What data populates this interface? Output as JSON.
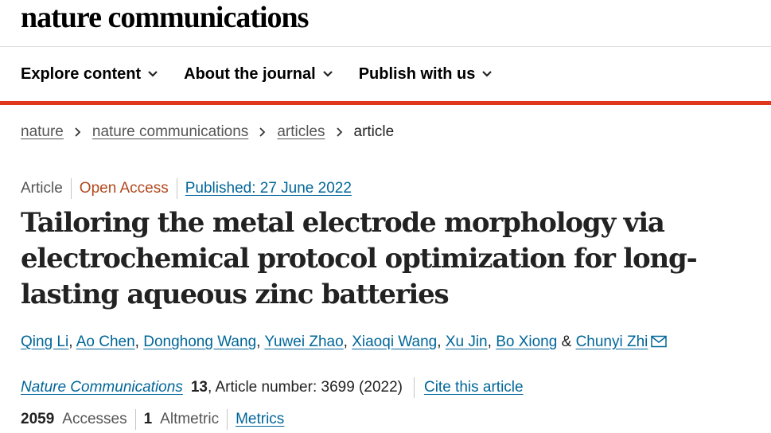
{
  "header": {
    "logo": "nature communications"
  },
  "nav": {
    "items": [
      {
        "label": "Explore content"
      },
      {
        "label": "About the journal"
      },
      {
        "label": "Publish with us"
      }
    ]
  },
  "breadcrumb": {
    "items": [
      "nature",
      "nature communications",
      "articles"
    ],
    "current": "article"
  },
  "meta": {
    "type": "Article",
    "access": "Open Access",
    "published": "Published: 27 June 2022"
  },
  "article": {
    "title": "Tailoring the metal electrode morphology via electrochemical protocol optimization for long-lasting aqueous zinc batteries",
    "authors": [
      "Qing Li",
      "Ao Chen",
      "Donghong Wang",
      "Yuwei Zhao",
      "Xiaoqi Wang",
      "Xu Jin",
      "Bo Xiong",
      "Chunyi Zhi"
    ],
    "author_sep": ",",
    "author_and": "&"
  },
  "journal": {
    "name": "Nature Communications",
    "volume": "13",
    "article_number": ", Article number: 3699 (2022)",
    "cite_label": "Cite this article"
  },
  "metrics": {
    "accesses_value": "2059",
    "accesses_label": "Accesses",
    "altmetric_value": "1",
    "altmetric_label": "Altmetric",
    "metrics_link": "Metrics"
  },
  "colors": {
    "accent_red": "#e0371c",
    "link_blue": "#006699",
    "open_access": "#b2491e"
  },
  "icons": {
    "nav_chevron": "chevron-down-icon",
    "breadcrumb_separator": "chevron-right-icon",
    "corresponding_author": "mail-icon"
  }
}
